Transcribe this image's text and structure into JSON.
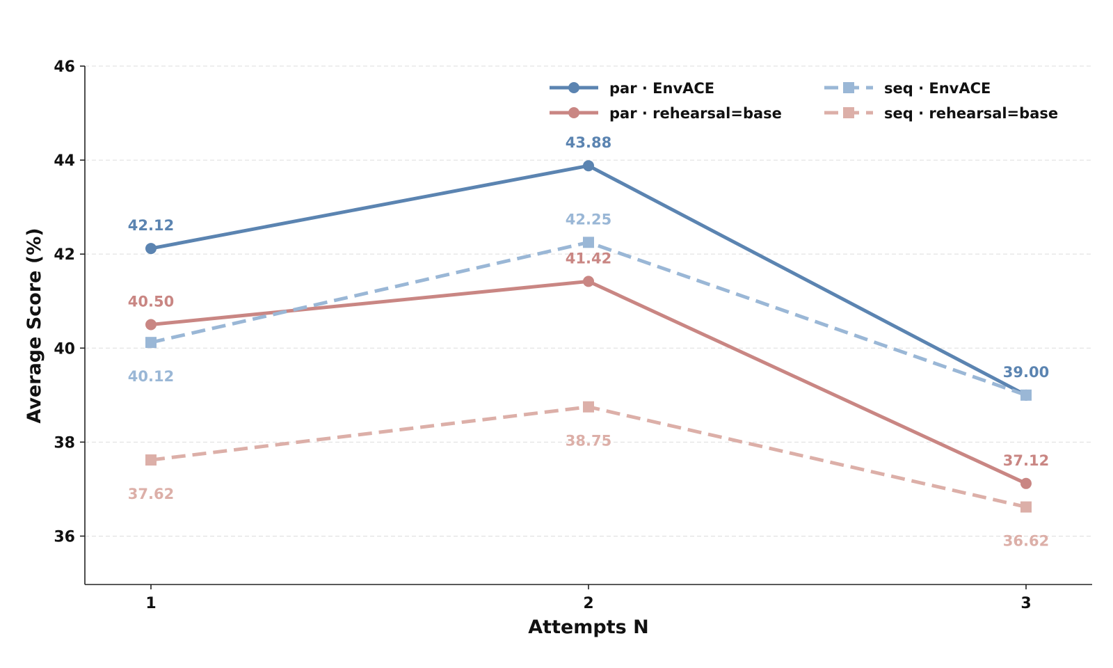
{
  "chart_data": {
    "type": "line",
    "xlabel": "Attempts N",
    "ylabel": "Average Score (%)",
    "x": [
      1,
      2,
      3
    ],
    "ylim": [
      35,
      46
    ],
    "yticks": [
      36,
      38,
      40,
      42,
      44,
      46
    ],
    "grid": "horizontal-dashed",
    "legend_position": "top-right",
    "series": [
      {
        "name": "par · EnvACE",
        "values": [
          42.12,
          43.88,
          39.0
        ],
        "labels": [
          "42.12",
          "43.88",
          "39.00"
        ],
        "color": "#5b84b1",
        "dashed": false,
        "marker": "circle",
        "label_side": [
          "above",
          "above",
          "above"
        ]
      },
      {
        "name": "par · rehearsal=base",
        "values": [
          40.5,
          41.42,
          37.12
        ],
        "labels": [
          "40.50",
          "41.42",
          "37.12"
        ],
        "color": "#c98683",
        "dashed": false,
        "marker": "circle",
        "label_side": [
          "above",
          "above",
          "above"
        ]
      },
      {
        "name": "seq · EnvACE",
        "values": [
          40.12,
          42.25,
          39.0
        ],
        "labels": [
          "40.12",
          "42.25",
          ""
        ],
        "color": "#9ab7d6",
        "dashed": true,
        "marker": "square",
        "label_side": [
          "below",
          "above",
          "above"
        ]
      },
      {
        "name": "seq · rehearsal=base",
        "values": [
          37.62,
          38.75,
          36.62
        ],
        "labels": [
          "37.62",
          "38.75",
          "36.62"
        ],
        "color": "#dcafa8",
        "dashed": true,
        "marker": "square",
        "label_side": [
          "below",
          "below",
          "below"
        ]
      }
    ]
  }
}
